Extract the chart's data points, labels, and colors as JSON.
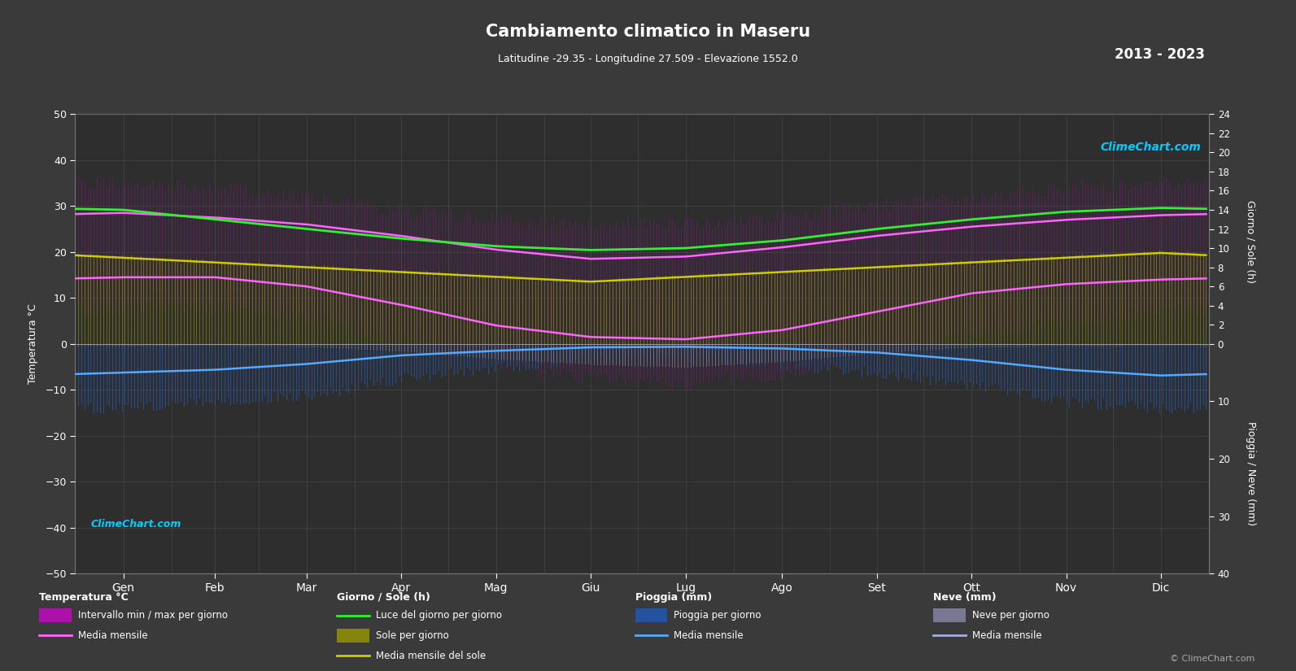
{
  "title": "Cambiamento climatico in Maseru",
  "subtitle": "Latitudine -29.35 - Longitudine 27.509 - Elevazione 1552.0",
  "year_range": "2013 - 2023",
  "background_color": "#3a3a3a",
  "plot_bg_color": "#2e2e2e",
  "months": [
    "Gen",
    "Feb",
    "Mar",
    "Apr",
    "Mag",
    "Giu",
    "Lug",
    "Ago",
    "Set",
    "Ott",
    "Nov",
    "Dic"
  ],
  "days_per_month": [
    31,
    28,
    31,
    30,
    31,
    30,
    31,
    31,
    30,
    31,
    30,
    31
  ],
  "temp_ylim": [
    -50,
    50
  ],
  "temp_yticks": [
    -50,
    -40,
    -30,
    -20,
    -10,
    0,
    10,
    20,
    30,
    40,
    50
  ],
  "sun_scale": 2.0833,
  "rain_scale": 1.25,
  "temp_max_mean": [
    28.5,
    27.5,
    26.0,
    23.5,
    20.5,
    18.5,
    19.0,
    21.0,
    23.5,
    25.5,
    27.0,
    28.0
  ],
  "temp_min_mean": [
    14.5,
    14.5,
    12.5,
    8.5,
    4.0,
    1.5,
    1.0,
    3.0,
    7.0,
    11.0,
    13.0,
    14.0
  ],
  "temp_max_daily_high": [
    35.0,
    34.0,
    32.0,
    29.0,
    27.0,
    26.0,
    26.0,
    27.5,
    30.0,
    32.0,
    34.0,
    35.0
  ],
  "temp_min_daily_low": [
    8.0,
    8.0,
    6.0,
    1.0,
    -4.5,
    -7.5,
    -8.5,
    -6.5,
    -1.5,
    2.5,
    5.0,
    7.0
  ],
  "daylight_hours": [
    14.0,
    13.0,
    12.0,
    11.0,
    10.2,
    9.8,
    10.0,
    10.8,
    12.0,
    13.0,
    13.8,
    14.2
  ],
  "sunshine_hours": [
    9.0,
    8.5,
    8.0,
    7.5,
    7.0,
    6.5,
    7.0,
    7.5,
    8.0,
    8.5,
    9.0,
    9.5
  ],
  "rain_daily_max": [
    10.0,
    9.0,
    8.0,
    5.0,
    3.0,
    2.0,
    1.5,
    2.5,
    4.0,
    6.0,
    9.0,
    10.0
  ],
  "rain_mean": [
    5.0,
    4.5,
    3.5,
    2.0,
    1.2,
    0.6,
    0.5,
    0.8,
    1.5,
    2.8,
    4.5,
    5.5
  ],
  "snow_daily_max": [
    0.3,
    0.2,
    0.4,
    1.2,
    2.5,
    3.5,
    4.0,
    3.0,
    1.5,
    0.5,
    0.3,
    0.2
  ],
  "snow_mean": [
    0.1,
    0.1,
    0.1,
    0.4,
    0.8,
    1.2,
    1.5,
    1.0,
    0.5,
    0.15,
    0.1,
    0.1
  ],
  "color_bg": "#3a3a3a",
  "color_plot_bg": "#2e2e2e",
  "color_grid": "#555555",
  "color_text": "#ffffff",
  "color_axis": "#777777",
  "color_temp_bar": "#dd00dd",
  "color_temp_bar_alpha": 0.25,
  "color_sun_bar": "#999900",
  "color_sun_bar_alpha": 0.55,
  "color_rain_bar": "#2255aa",
  "color_rain_bar_alpha": 0.8,
  "color_snow_bar": "#8888aa",
  "color_snow_bar_alpha": 0.6,
  "color_temp_max_line": "#ff66ff",
  "color_temp_min_line": "#ff66ff",
  "color_daylight_line": "#33ee33",
  "color_sunshine_line": "#cccc00",
  "color_rain_mean_line": "#55aaff",
  "color_snow_mean_line": "#aaaadd",
  "color_climechart_top": "#00ccff",
  "color_climechart_bot": "#00ccff"
}
